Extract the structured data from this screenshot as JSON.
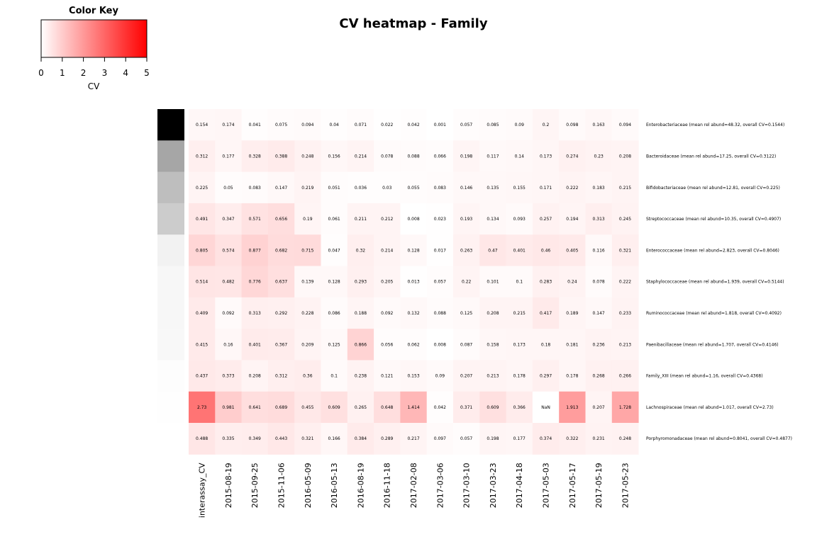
{
  "chart_data": {
    "type": "heatmap",
    "title": "CV heatmap - Family",
    "columns": [
      "interassay_CV",
      "2015-08-19",
      "2015-09-25",
      "2015-11-06",
      "2016-05-09",
      "2016-05-13",
      "2016-08-19",
      "2016-11-18",
      "2017-02-08",
      "2017-03-06",
      "2017-03-10",
      "2017-03-23",
      "2017-04-18",
      "2017-05-03",
      "2017-05-17",
      "2017-05-19",
      "2017-05-23"
    ],
    "rows": [
      "Enterobacteriaceae (mean rel abund=48.32, overall CV=0.1544)",
      "Bacteroidaceae (mean rel abund=17.25, overall CV=0.3122)",
      "Bifidobacteriaceae (mean rel abund=12.81, overall CV=0.225)",
      "Streptococcaceae (mean rel abund=10.35, overall CV=0.4907)",
      "Enterococcaceae (mean rel abund=2.823, overall CV=0.8046)",
      "Staphylococcaceae (mean rel abund=1.939, overall CV=0.5144)",
      "Ruminococcaceae (mean rel abund=1.818, overall CV=0.4092)",
      "Paenibacillaceae (mean rel abund=1.707, overall CV=0.4146)",
      "Family_XIII (mean rel abund=1.16, overall CV=0.4368)",
      "Lachnospiraceae (mean rel abund=1.017, overall CV=2.73)",
      "Porphyromonadaceae (mean rel abund=0.8041, overall CV=0.4877)"
    ],
    "values": [
      [
        0.154,
        0.174,
        0.041,
        0.075,
        0.094,
        0.04,
        0.071,
        0.022,
        0.042,
        0.001,
        0.057,
        0.085,
        0.09,
        0.2,
        0.098,
        0.163,
        0.094
      ],
      [
        0.312,
        0.177,
        0.328,
        0.388,
        0.248,
        0.156,
        0.214,
        0.078,
        0.088,
        0.066,
        0.198,
        0.117,
        0.14,
        0.173,
        0.274,
        0.23,
        0.208
      ],
      [
        0.225,
        0.05,
        0.083,
        0.147,
        0.219,
        0.051,
        0.036,
        0.03,
        0.055,
        0.083,
        0.146,
        0.135,
        0.155,
        0.171,
        0.222,
        0.183,
        0.215
      ],
      [
        0.491,
        0.347,
        0.571,
        0.656,
        0.19,
        0.061,
        0.211,
        0.212,
        0.008,
        0.023,
        0.193,
        0.134,
        0.093,
        0.257,
        0.194,
        0.313,
        0.245
      ],
      [
        0.805,
        0.574,
        0.877,
        0.682,
        0.715,
        0.047,
        0.32,
        0.214,
        0.128,
        0.017,
        0.263,
        0.47,
        0.401,
        0.46,
        0.405,
        0.116,
        0.321
      ],
      [
        0.514,
        0.482,
        0.776,
        0.637,
        0.139,
        0.128,
        0.293,
        0.205,
        0.013,
        0.057,
        0.22,
        0.101,
        0.1,
        0.283,
        0.24,
        0.078,
        0.222
      ],
      [
        0.409,
        0.092,
        0.313,
        0.292,
        0.228,
        0.086,
        0.188,
        0.092,
        0.132,
        0.088,
        0.125,
        0.208,
        0.215,
        0.417,
        0.189,
        0.147,
        0.233
      ],
      [
        0.415,
        0.16,
        0.401,
        0.367,
        0.209,
        0.125,
        0.866,
        0.056,
        0.062,
        0.008,
        0.087,
        0.158,
        0.173,
        0.18,
        0.181,
        0.236,
        0.213
      ],
      [
        0.437,
        0.373,
        0.208,
        0.312,
        0.36,
        0.1,
        0.238,
        0.121,
        0.153,
        0.09,
        0.207,
        0.213,
        0.178,
        0.297,
        0.178,
        0.268,
        0.266
      ],
      [
        2.73,
        0.981,
        0.641,
        0.689,
        0.455,
        0.609,
        0.265,
        0.648,
        1.414,
        0.042,
        0.371,
        0.609,
        0.366,
        null,
        1.913,
        0.207,
        1.728
      ],
      [
        0.488,
        0.335,
        0.349,
        0.443,
        0.321,
        0.166,
        0.384,
        0.289,
        0.217,
        0.097,
        0.057,
        0.198,
        0.177,
        0.374,
        0.322,
        0.231,
        0.248
      ]
    ],
    "cell_labels": [
      [
        "0.154",
        "0.174",
        "0.041",
        "0.075",
        "0.094",
        "0.04",
        "0.071",
        "0.022",
        "0.042",
        "0.001",
        "0.057",
        "0.085",
        "0.09",
        "0.2",
        "0.098",
        "0.163",
        "0.094"
      ],
      [
        "0.312",
        "0.177",
        "0.328",
        "0.388",
        "0.248",
        "0.156",
        "0.214",
        "0.078",
        "0.088",
        "0.066",
        "0.198",
        "0.117",
        "0.14",
        "0.173",
        "0.274",
        "0.23",
        "0.208"
      ],
      [
        "0.225",
        "0.05",
        "0.083",
        "0.147",
        "0.219",
        "0.051",
        "0.036",
        "0.03",
        "0.055",
        "0.083",
        "0.146",
        "0.135",
        "0.155",
        "0.171",
        "0.222",
        "0.183",
        "0.215"
      ],
      [
        "0.491",
        "0.347",
        "0.571",
        "0.656",
        "0.19",
        "0.061",
        "0.211",
        "0.212",
        "0.008",
        "0.023",
        "0.193",
        "0.134",
        "0.093",
        "0.257",
        "0.194",
        "0.313",
        "0.245"
      ],
      [
        "0.805",
        "0.574",
        "0.877",
        "0.682",
        "0.715",
        "0.047",
        "0.32",
        "0.214",
        "0.128",
        "0.017",
        "0.263",
        "0.47",
        "0.401",
        "0.46",
        "0.405",
        "0.116",
        "0.321"
      ],
      [
        "0.514",
        "0.482",
        "0.776",
        "0.637",
        "0.139",
        "0.128",
        "0.293",
        "0.205",
        "0.013",
        "0.057",
        "0.22",
        "0.101",
        "0.1",
        "0.283",
        "0.24",
        "0.078",
        "0.222"
      ],
      [
        "0.409",
        "0.092",
        "0.313",
        "0.292",
        "0.228",
        "0.086",
        "0.188",
        "0.092",
        "0.132",
        "0.088",
        "0.125",
        "0.208",
        "0.215",
        "0.417",
        "0.189",
        "0.147",
        "0.233"
      ],
      [
        "0.415",
        "0.16",
        "0.401",
        "0.367",
        "0.209",
        "0.125",
        "0.866",
        "0.056",
        "0.062",
        "0.008",
        "0.087",
        "0.158",
        "0.173",
        "0.18",
        "0.181",
        "0.236",
        "0.213"
      ],
      [
        "0.437",
        "0.373",
        "0.208",
        "0.312",
        "0.36",
        "0.1",
        "0.238",
        "0.121",
        "0.153",
        "0.09",
        "0.207",
        "0.213",
        "0.178",
        "0.297",
        "0.178",
        "0.268",
        "0.266"
      ],
      [
        "2.73",
        "0.981",
        "0.641",
        "0.689",
        "0.455",
        "0.609",
        "0.265",
        "0.648",
        "1.414",
        "0.042",
        "0.371",
        "0.609",
        "0.366",
        "NaN",
        "1.913",
        "0.207",
        "1.728"
      ],
      [
        "0.488",
        "0.335",
        "0.349",
        "0.443",
        "0.321",
        "0.166",
        "0.384",
        "0.289",
        "0.217",
        "0.097",
        "0.057",
        "0.198",
        "0.177",
        "0.374",
        "0.322",
        "0.231",
        "0.248"
      ]
    ],
    "row_side_colors": [
      "#000000",
      "#a6a6a6",
      "#bebebe",
      "#cccccc",
      "#f2f2f2",
      "#f7f7f7",
      "#f7f7f7",
      "#f8f8f8",
      "#fdfdfd",
      "#fefefe",
      "#ffffff"
    ],
    "color_scale": {
      "low": "#ffffff",
      "high": "#ff0000",
      "range": [
        0,
        5
      ],
      "na_color": "#ffffff"
    },
    "color_key": {
      "title": "Color Key",
      "xlabel": "CV",
      "ticks": [
        "0",
        "1",
        "2",
        "3",
        "4",
        "5"
      ]
    }
  }
}
